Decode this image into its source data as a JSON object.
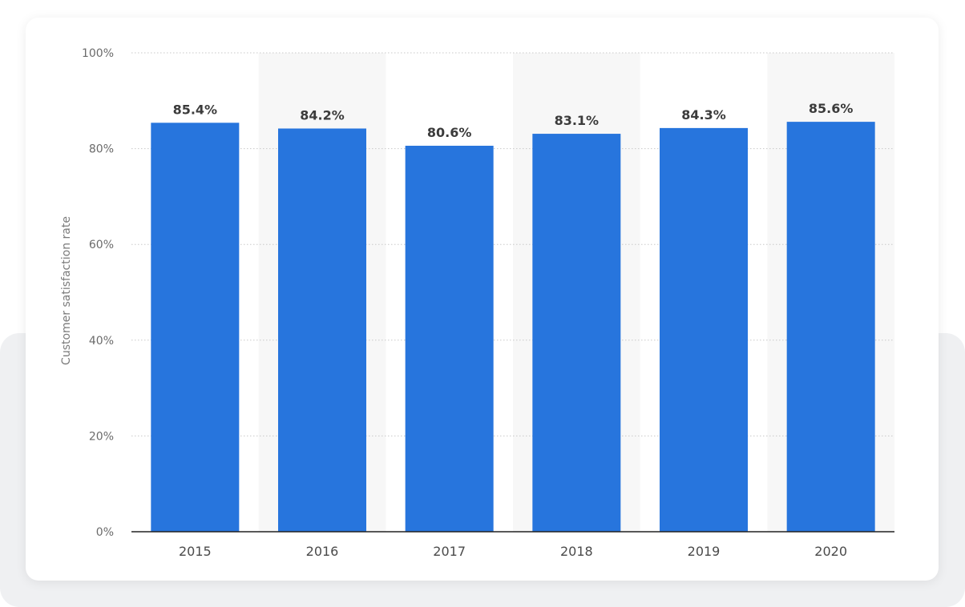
{
  "chart_data": {
    "type": "bar",
    "categories": [
      "2015",
      "2016",
      "2017",
      "2018",
      "2019",
      "2020"
    ],
    "values": [
      85.4,
      84.2,
      80.6,
      83.1,
      84.3,
      85.6
    ],
    "value_labels": [
      "85.4%",
      "84.2%",
      "80.6%",
      "83.1%",
      "84.3%",
      "85.6%"
    ],
    "title": "",
    "xlabel": "",
    "ylabel": "Customer satisfaction rate",
    "ylim": [
      0,
      100
    ],
    "yticks": [
      0,
      20,
      40,
      60,
      80,
      100
    ],
    "ytick_labels": [
      "0%",
      "20%",
      "40%",
      "60%",
      "80%",
      "100%"
    ],
    "grid": true,
    "colors": {
      "bar": "#2775dd",
      "band": "#f7f7f7",
      "grid": "#c8c8c8",
      "axis": "#222222"
    }
  }
}
